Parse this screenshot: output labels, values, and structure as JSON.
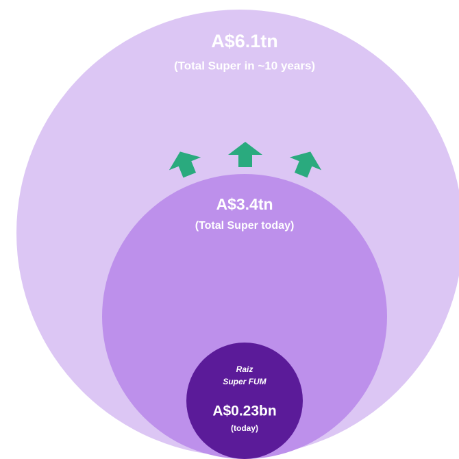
{
  "circles": [
    {
      "value": "A$6.1tn",
      "label": "(Total Super in ~10 years)"
    },
    {
      "value": "A$3.4tn",
      "label": "(Total Super today)"
    },
    {
      "title": [
        "Raiz",
        "Super FUM"
      ],
      "value": "A$0.23bn",
      "label": "(today)"
    }
  ]
}
